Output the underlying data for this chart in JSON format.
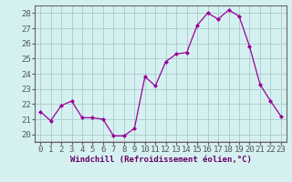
{
  "x": [
    0,
    1,
    2,
    3,
    4,
    5,
    6,
    7,
    8,
    9,
    10,
    11,
    12,
    13,
    14,
    15,
    16,
    17,
    18,
    19,
    20,
    21,
    22,
    23
  ],
  "y": [
    21.5,
    20.9,
    21.9,
    22.2,
    21.1,
    21.1,
    21.0,
    19.9,
    19.9,
    20.4,
    23.8,
    23.2,
    24.8,
    25.3,
    25.4,
    27.2,
    28.0,
    27.6,
    28.2,
    27.8,
    25.8,
    23.3,
    22.2,
    21.2
  ],
  "line_color": "#990099",
  "marker": "D",
  "marker_size": 2.0,
  "bg_color": "#d5f0f0",
  "grid_color": "#aacccc",
  "xlabel": "Windchill (Refroidissement éolien,°C)",
  "xlabel_fontsize": 6.5,
  "tick_fontsize": 6.5,
  "ylim": [
    19.5,
    28.5
  ],
  "xlim": [
    -0.5,
    23.5
  ],
  "yticks": [
    20,
    21,
    22,
    23,
    24,
    25,
    26,
    27,
    28
  ],
  "xticks": [
    0,
    1,
    2,
    3,
    4,
    5,
    6,
    7,
    8,
    9,
    10,
    11,
    12,
    13,
    14,
    15,
    16,
    17,
    18,
    19,
    20,
    21,
    22,
    23
  ],
  "spine_color": "#888888",
  "tick_color": "#555555"
}
